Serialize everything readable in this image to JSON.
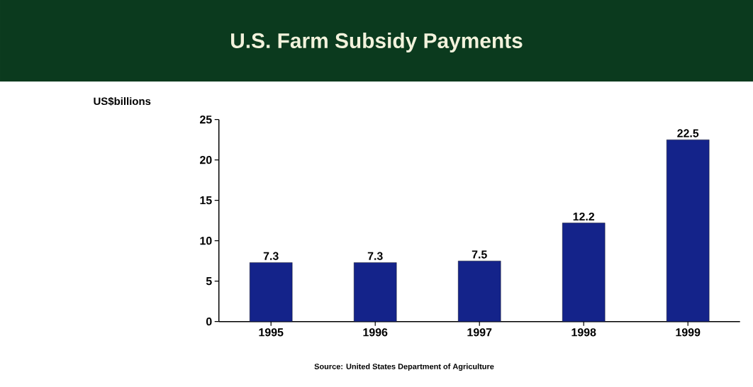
{
  "chart_data": {
    "type": "bar",
    "title": "U.S. Farm Subsidy Payments",
    "ylabel": "US$billions",
    "categories": [
      "1995",
      "1996",
      "1997",
      "1998",
      "1999"
    ],
    "values": [
      7.3,
      7.3,
      7.5,
      12.2,
      22.5
    ],
    "color": "#14238a",
    "ylim": [
      0,
      25
    ],
    "yticks": [
      0,
      5,
      10,
      15,
      20,
      25
    ],
    "grid": false,
    "data_labels": true,
    "annotations": [
      "Source: United States Department of Agriculture"
    ]
  }
}
